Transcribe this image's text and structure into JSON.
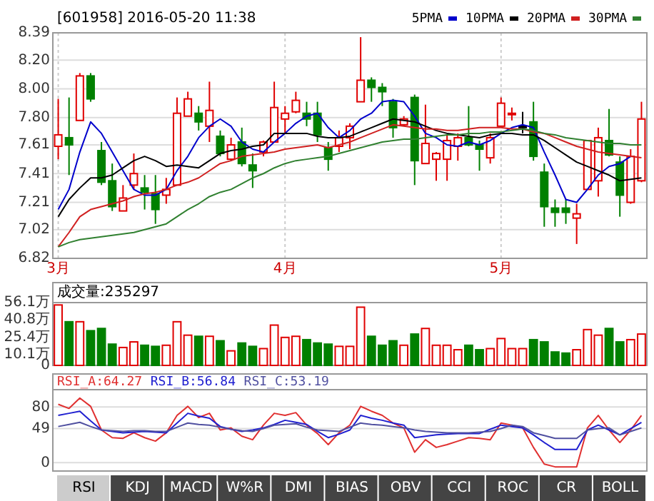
{
  "chart_data": [
    {
      "type": "candlestick",
      "title": "[601958] 2016-05-20 11:38",
      "legend": "top right",
      "grid": true,
      "ylim": [
        6.82,
        8.39
      ],
      "yticks": [
        8.39,
        {
          "value": 8.2,
          "label": "8.20"
        },
        {
          "value": 8,
          "label": "8.00"
        },
        {
          "value": 7.8,
          "label": "7.80"
        },
        7.61,
        7.41,
        7.21,
        7.02,
        6.82
      ],
      "categories": [
        "3月",
        null,
        null,
        null,
        null,
        null,
        null,
        null,
        null,
        null,
        null,
        null,
        null,
        null,
        null,
        null,
        null,
        null,
        null,
        null,
        null,
        "4月",
        null,
        null,
        null,
        null,
        null,
        null,
        null,
        null,
        null,
        null,
        null,
        null,
        null,
        null,
        null,
        null,
        null,
        null,
        null,
        "5月",
        null,
        null,
        null,
        null,
        null,
        null,
        null,
        null,
        null,
        null,
        null,
        null,
        null
      ],
      "ohlc": [
        [
          7.6,
          7.93,
          7.51,
          7.68
        ],
        [
          7.66,
          7.94,
          7.4,
          7.61
        ],
        [
          7.78,
          8.11,
          7.78,
          8.09
        ],
        [
          8.09,
          8.11,
          7.91,
          7.93
        ],
        [
          7.57,
          7.63,
          7.33,
          7.35
        ],
        [
          7.36,
          7.48,
          7.15,
          7.18
        ],
        [
          7.15,
          7.33,
          7.15,
          7.24
        ],
        [
          7.33,
          7.55,
          7.3,
          7.41
        ],
        [
          7.31,
          7.4,
          7.16,
          7.28
        ],
        [
          7.27,
          7.4,
          7.06,
          7.16
        ],
        [
          7.26,
          7.38,
          7.2,
          7.3
        ],
        [
          7.33,
          7.94,
          7.33,
          7.83
        ],
        [
          7.81,
          7.98,
          7.81,
          7.93
        ],
        [
          7.83,
          7.88,
          7.71,
          7.77
        ],
        [
          7.74,
          8.05,
          7.63,
          7.85
        ],
        [
          7.67,
          7.71,
          7.53,
          7.55
        ],
        [
          7.51,
          7.66,
          7.5,
          7.61
        ],
        [
          7.63,
          7.73,
          7.46,
          7.48
        ],
        [
          7.47,
          7.55,
          7.31,
          7.43
        ],
        [
          7.56,
          7.64,
          7.53,
          7.63
        ],
        [
          7.63,
          8.05,
          7.63,
          7.87
        ],
        [
          7.79,
          7.88,
          7.69,
          7.83
        ],
        [
          7.84,
          7.98,
          7.83,
          7.92
        ],
        [
          7.83,
          7.91,
          7.74,
          7.79
        ],
        [
          7.83,
          7.91,
          7.63,
          7.68
        ],
        [
          7.59,
          7.63,
          7.43,
          7.51
        ],
        [
          7.6,
          7.71,
          7.56,
          7.66
        ],
        [
          7.66,
          7.76,
          7.58,
          7.74
        ],
        [
          7.91,
          8.36,
          7.91,
          8.06
        ],
        [
          8.06,
          8.08,
          7.91,
          8.01
        ],
        [
          8.01,
          8.04,
          7.88,
          7.98
        ],
        [
          7.91,
          7.93,
          7.66,
          7.73
        ],
        [
          7.75,
          7.81,
          7.74,
          7.79
        ],
        [
          7.94,
          7.96,
          7.33,
          7.5
        ],
        [
          7.48,
          7.89,
          7.48,
          7.62
        ],
        [
          7.51,
          7.56,
          7.36,
          7.55
        ],
        [
          7.51,
          7.68,
          7.36,
          7.64
        ],
        [
          7.6,
          7.69,
          7.5,
          7.66
        ],
        [
          7.66,
          7.88,
          7.6,
          7.61
        ],
        [
          7.61,
          7.64,
          7.43,
          7.58
        ],
        [
          7.52,
          7.69,
          7.48,
          7.66
        ],
        [
          7.74,
          7.94,
          7.74,
          7.9
        ],
        [
          7.82,
          7.87,
          7.78,
          7.83
        ],
        [
          7.74,
          7.84,
          7.69,
          7.74
        ],
        [
          7.77,
          7.91,
          7.5,
          7.53
        ],
        [
          7.42,
          7.48,
          7.04,
          7.18
        ],
        [
          7.17,
          7.23,
          7.04,
          7.14
        ],
        [
          7.17,
          7.23,
          7.06,
          7.14
        ],
        [
          7.1,
          7.2,
          6.92,
          7.13
        ],
        [
          7.3,
          7.64,
          7.3,
          7.64
        ],
        [
          7.36,
          7.73,
          7.25,
          7.66
        ],
        [
          7.64,
          7.86,
          7.53,
          7.54
        ],
        [
          7.49,
          7.53,
          7.11,
          7.26
        ],
        [
          7.21,
          7.58,
          7.2,
          7.53
        ],
        [
          7.36,
          7.91,
          7.35,
          7.79
        ]
      ],
      "colors": [
        "#e00000",
        "#008000",
        "#e00000",
        "#008000",
        "#008000",
        "#008000",
        "#e00000",
        "#e00000",
        "#008000",
        "#008000",
        "#e00000",
        "#e00000",
        "#e00000",
        "#008000",
        "#e00000",
        "#008000",
        "#e00000",
        "#008000",
        "#008000",
        "#e00000",
        "#e00000",
        "#e00000",
        "#e00000",
        "#008000",
        "#008000",
        "#008000",
        "#e00000",
        "#e00000",
        "#e00000",
        "#008000",
        "#008000",
        "#008000",
        "#e00000",
        "#008000",
        "#e00000",
        "#e00000",
        "#e00000",
        "#e00000",
        "#008000",
        "#008000",
        "#e00000",
        "#e00000",
        "#e00000",
        "#000000",
        "#008000",
        "#008000",
        "#008000",
        "#008000",
        "#e00000",
        "#e00000",
        "#e00000",
        "#008000",
        "#008000",
        "#e00000",
        "#e00000"
      ],
      "series": [
        {
          "type": "line",
          "name": "5PMA",
          "color": "#0000cc",
          "values": [
            7.16,
            7.3,
            7.56,
            7.77,
            7.69,
            7.56,
            7.43,
            7.3,
            7.26,
            7.26,
            7.3,
            7.43,
            7.53,
            7.66,
            7.74,
            7.79,
            7.74,
            7.63,
            7.58,
            7.56,
            7.63,
            7.69,
            7.76,
            7.81,
            7.83,
            7.73,
            7.66,
            7.71,
            7.79,
            7.83,
            7.91,
            7.92,
            7.91,
            7.81,
            7.69,
            7.66,
            7.61,
            7.6,
            7.63,
            7.61,
            7.64,
            7.69,
            7.73,
            7.75,
            7.73,
            7.56,
            7.4,
            7.23,
            7.21,
            7.3,
            7.4,
            7.46,
            7.48,
            7.53,
            null
          ]
        },
        {
          "type": "line",
          "name": "10PMA",
          "color": "#000000",
          "values": [
            7.11,
            7.23,
            7.31,
            7.38,
            7.38,
            7.4,
            7.45,
            7.5,
            7.53,
            7.5,
            7.46,
            7.47,
            7.46,
            7.45,
            7.5,
            7.55,
            7.57,
            7.58,
            7.6,
            7.61,
            7.69,
            7.69,
            7.69,
            7.69,
            7.67,
            7.66,
            7.66,
            7.67,
            7.7,
            7.73,
            7.76,
            7.79,
            7.78,
            7.77,
            7.74,
            7.71,
            7.69,
            7.68,
            7.67,
            7.66,
            7.68,
            7.69,
            7.69,
            7.68,
            7.68,
            7.64,
            7.59,
            7.54,
            7.49,
            7.46,
            7.43,
            7.4,
            7.36,
            7.37,
            7.38
          ]
        },
        {
          "type": "line",
          "name": "20PMA",
          "color": "#d02020",
          "values": [
            6.9,
            7.0,
            7.11,
            7.16,
            7.18,
            7.2,
            7.22,
            7.25,
            7.27,
            7.28,
            7.3,
            7.33,
            7.35,
            7.38,
            7.43,
            7.48,
            7.5,
            7.53,
            7.54,
            7.55,
            7.56,
            7.58,
            7.59,
            7.6,
            7.61,
            7.59,
            7.61,
            7.63,
            7.66,
            7.69,
            7.72,
            7.75,
            7.74,
            7.73,
            7.72,
            7.72,
            7.71,
            7.71,
            7.72,
            7.73,
            7.73,
            7.73,
            7.72,
            7.72,
            7.7,
            7.69,
            7.66,
            7.63,
            7.6,
            7.58,
            7.56,
            7.55,
            7.54,
            7.53,
            7.52
          ]
        },
        {
          "type": "line",
          "name": "30PMA",
          "color": "#308030",
          "values": [
            6.9,
            6.93,
            6.95,
            6.96,
            6.97,
            6.98,
            6.99,
            7.0,
            7.02,
            7.04,
            7.06,
            7.11,
            7.16,
            7.2,
            7.25,
            7.28,
            7.3,
            7.34,
            7.38,
            7.41,
            7.45,
            7.48,
            7.5,
            7.51,
            7.52,
            7.53,
            7.55,
            7.57,
            7.59,
            7.61,
            7.63,
            7.64,
            7.65,
            7.65,
            7.66,
            7.67,
            7.68,
            7.68,
            7.69,
            7.69,
            7.7,
            7.7,
            7.71,
            7.72,
            7.71,
            7.69,
            7.68,
            7.66,
            7.65,
            7.64,
            7.63,
            7.62,
            7.62,
            7.61,
            7.61
          ]
        }
      ]
    },
    {
      "type": "bar",
      "title": "成交量:235297",
      "tick_labels": "y",
      "ylim": [
        0,
        56.1
      ],
      "yticks": [
        {
          "value": 56.1,
          "label": "56.1万"
        },
        {
          "value": 40.8,
          "label": "40.8万"
        },
        {
          "value": 25.4,
          "label": "25.4万"
        },
        {
          "value": 10.1,
          "label": "10.1万"
        },
        0
      ],
      "categories": [
        null,
        null,
        null,
        null,
        null,
        null,
        null,
        null,
        null,
        null,
        null,
        null,
        null,
        null,
        null,
        null,
        null,
        null,
        null,
        null,
        null,
        null,
        null,
        null,
        null,
        null,
        null,
        null,
        null,
        null,
        null,
        null,
        null,
        null,
        null,
        null,
        null,
        null,
        null,
        null,
        null,
        null,
        null,
        null,
        null,
        null,
        null,
        null,
        null,
        null,
        null,
        null,
        null,
        null,
        null
      ],
      "values": [
        54,
        39,
        39,
        31,
        33,
        19,
        16,
        21,
        18,
        17,
        18,
        39,
        27,
        26,
        26,
        22,
        13,
        20,
        17,
        15,
        36,
        25,
        26,
        23,
        20,
        19,
        17,
        17,
        52,
        26,
        18,
        22,
        18,
        28,
        33,
        18,
        18,
        14,
        18,
        14,
        15,
        24,
        15,
        15,
        23,
        21,
        12,
        11,
        14,
        32,
        27,
        33,
        21,
        23,
        28
      ],
      "colors": [
        "#e00000",
        "#008000",
        "#e00000",
        "#008000",
        "#008000",
        "#008000",
        "#e00000",
        "#e00000",
        "#008000",
        "#008000",
        "#e00000",
        "#e00000",
        "#e00000",
        "#008000",
        "#e00000",
        "#008000",
        "#e00000",
        "#008000",
        "#008000",
        "#e00000",
        "#e00000",
        "#e00000",
        "#e00000",
        "#008000",
        "#008000",
        "#008000",
        "#e00000",
        "#e00000",
        "#e00000",
        "#008000",
        "#008000",
        "#008000",
        "#e00000",
        "#008000",
        "#e00000",
        "#e00000",
        "#e00000",
        "#e00000",
        "#008000",
        "#008000",
        "#e00000",
        "#e00000",
        "#e00000",
        "#e00000",
        "#008000",
        "#008000",
        "#008000",
        "#008000",
        "#e00000",
        "#e00000",
        "#e00000",
        "#008000",
        "#008000",
        "#e00000",
        "#e00000"
      ]
    },
    {
      "type": "line",
      "legend": "top left",
      "grid": "y",
      "tick_labels": "y",
      "ylim": [
        -12,
        105
      ],
      "yticks": [
        80,
        49,
        0
      ],
      "categories": [
        null,
        null,
        null,
        null,
        null,
        null,
        null,
        null,
        null,
        null,
        null,
        null,
        null,
        null,
        null,
        null,
        null,
        null,
        null,
        null,
        null,
        null,
        null,
        null,
        null,
        null,
        null,
        null,
        null,
        null,
        null,
        null,
        null,
        null,
        null,
        null,
        null,
        null,
        null,
        null,
        null,
        null,
        null,
        null,
        null,
        null,
        null,
        null,
        null,
        null,
        null,
        null,
        null,
        null,
        null
      ],
      "annotations": [
        "RSI",
        "KDJ",
        "MACD",
        "W%R",
        "DMI",
        "BIAS",
        "OBV",
        "CCI",
        "ROC",
        "CR",
        "BOLL"
      ],
      "series": [
        {
          "name": "RSI_A:64.27",
          "color": "#e03030",
          "values": [
            84,
            78,
            93,
            81,
            47,
            36,
            35,
            43,
            36,
            31,
            43,
            68,
            81,
            65,
            71,
            47,
            50,
            38,
            33,
            54,
            71,
            68,
            72,
            54,
            42,
            26,
            43,
            54,
            81,
            74,
            68,
            57,
            50,
            15,
            33,
            22,
            26,
            31,
            36,
            35,
            33,
            57,
            54,
            50,
            22,
            -2,
            -6,
            -6,
            -6,
            50,
            68,
            47,
            29,
            47,
            68
          ]
        },
        {
          "name": "RSI_B:56.84",
          "color": "#2020d0",
          "values": [
            68,
            71,
            74,
            60,
            47,
            45,
            43,
            44,
            45,
            44,
            43,
            57,
            71,
            67,
            64,
            52,
            48,
            45,
            47,
            50,
            55,
            61,
            58,
            55,
            45,
            36,
            41,
            47,
            68,
            64,
            61,
            57,
            54,
            36,
            38,
            40,
            41,
            42,
            42,
            42,
            48,
            54,
            52,
            50,
            40,
            29,
            19,
            19,
            19,
            47,
            54,
            47,
            40,
            49,
            58
          ]
        },
        {
          "name": "RSI_C:53.19",
          "color": "#5050a0",
          "values": [
            52,
            55,
            58,
            52,
            47,
            46,
            45,
            46,
            46,
            45,
            45,
            51,
            57,
            55,
            54,
            51,
            48,
            46,
            45,
            49,
            54,
            55,
            56,
            51,
            47,
            46,
            45,
            51,
            57,
            55,
            54,
            52,
            50,
            47,
            45,
            44,
            43,
            43,
            43,
            44,
            45,
            49,
            54,
            52,
            43,
            39,
            35,
            35,
            35,
            47,
            49,
            50,
            40,
            45,
            50
          ]
        }
      ]
    }
  ]
}
